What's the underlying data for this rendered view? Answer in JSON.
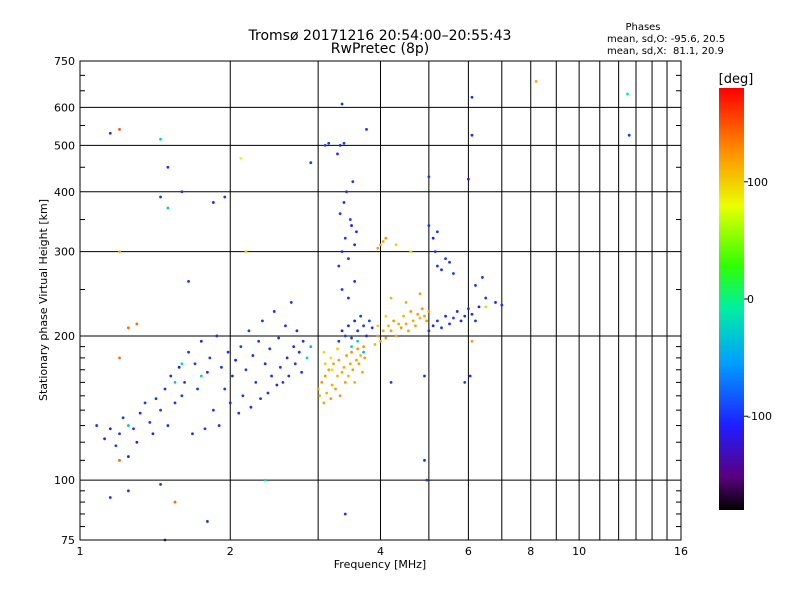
{
  "chart_data": {
    "type": "scatter",
    "title": "Tromsø 20171216 20:54:00–20:55:43",
    "subtitle": "RwPretec (8p)",
    "xlabel": "Frequency [MHz]",
    "ylabel": "Stationary phase Virtual Height [km]",
    "x_scale": "log2",
    "y_scale": "log",
    "xlim": [
      1,
      16
    ],
    "ylim": [
      75,
      750
    ],
    "x_ticks": [
      1,
      2,
      4,
      6,
      8,
      10,
      16
    ],
    "y_ticks": [
      75,
      100,
      200,
      300,
      400,
      500,
      600,
      750
    ],
    "grid": true,
    "stats": {
      "heading": "Phases",
      "line_o": "mean, sd,O: -95.6, 20.5",
      "line_x": "mean, sd,X:  81.1, 20.9"
    },
    "colorbar": {
      "label": "[deg]",
      "range": [
        -180,
        180
      ],
      "ticks": [
        100,
        0,
        -100
      ],
      "colormap": "rainbow"
    },
    "points": [
      [
        1.08,
        130,
        -100
      ],
      [
        1.12,
        122,
        -105
      ],
      [
        1.15,
        128,
        -110
      ],
      [
        1.18,
        118,
        -95
      ],
      [
        1.2,
        125,
        -100
      ],
      [
        1.22,
        135,
        -98
      ],
      [
        1.25,
        112,
        -105
      ],
      [
        1.28,
        128,
        -100
      ],
      [
        1.3,
        120,
        -110
      ],
      [
        1.32,
        138,
        -102
      ],
      [
        1.35,
        145,
        -95
      ],
      [
        1.38,
        132,
        -100
      ],
      [
        1.4,
        125,
        -108
      ],
      [
        1.42,
        148,
        -98
      ],
      [
        1.45,
        140,
        -100
      ],
      [
        1.48,
        155,
        -102
      ],
      [
        1.5,
        130,
        -98
      ],
      [
        1.52,
        165,
        -105
      ],
      [
        1.55,
        145,
        -100
      ],
      [
        1.58,
        172,
        -110
      ],
      [
        1.6,
        150,
        -98
      ],
      [
        1.62,
        160,
        -102
      ],
      [
        1.65,
        185,
        -100
      ],
      [
        1.68,
        125,
        -104
      ],
      [
        1.7,
        175,
        -95
      ],
      [
        1.72,
        155,
        -100
      ],
      [
        1.75,
        195,
        -108
      ],
      [
        1.78,
        128,
        -100
      ],
      [
        1.8,
        168,
        -102
      ],
      [
        1.82,
        180,
        -98
      ],
      [
        1.85,
        140,
        -100
      ],
      [
        1.88,
        200,
        -105
      ],
      [
        1.9,
        130,
        -100
      ],
      [
        1.92,
        172,
        -102
      ],
      [
        1.95,
        155,
        -98
      ],
      [
        1.98,
        185,
        -100
      ],
      [
        2.0,
        145,
        -104
      ],
      [
        2.02,
        165,
        -100
      ],
      [
        2.05,
        178,
        -108
      ],
      [
        2.08,
        138,
        -100
      ],
      [
        2.1,
        190,
        -98
      ],
      [
        2.12,
        150,
        -102
      ],
      [
        2.15,
        170,
        -100
      ],
      [
        2.18,
        205,
        -95
      ],
      [
        2.2,
        142,
        -100
      ],
      [
        2.22,
        182,
        -104
      ],
      [
        2.25,
        160,
        -100
      ],
      [
        2.28,
        195,
        -102
      ],
      [
        2.3,
        148,
        -98
      ],
      [
        2.32,
        215,
        -100
      ],
      [
        2.35,
        175,
        -106
      ],
      [
        2.38,
        152,
        -100
      ],
      [
        2.4,
        188,
        -98
      ],
      [
        2.42,
        165,
        -102
      ],
      [
        2.45,
        225,
        -100
      ],
      [
        2.48,
        158,
        -104
      ],
      [
        2.5,
        198,
        -100
      ],
      [
        2.52,
        172,
        -98
      ],
      [
        2.55,
        160,
        -102
      ],
      [
        2.58,
        210,
        -100
      ],
      [
        2.6,
        180,
        -105
      ],
      [
        2.62,
        165,
        -100
      ],
      [
        2.65,
        235,
        -98
      ],
      [
        2.68,
        190,
        -102
      ],
      [
        2.7,
        175,
        -100
      ],
      [
        2.72,
        205,
        -104
      ],
      [
        2.75,
        185,
        -100
      ],
      [
        2.78,
        168,
        -98
      ],
      [
        2.8,
        195,
        -102
      ],
      [
        2.85,
        180,
        -20
      ],
      [
        2.9,
        190,
        -40
      ],
      [
        1.25,
        130,
        -30
      ],
      [
        1.55,
        160,
        -30
      ],
      [
        1.6,
        175,
        -20
      ],
      [
        1.75,
        165,
        -20
      ],
      [
        3.0,
        155,
        120
      ],
      [
        3.02,
        150,
        115
      ],
      [
        3.05,
        160,
        125
      ],
      [
        3.08,
        145,
        118
      ],
      [
        3.1,
        165,
        122
      ],
      [
        3.12,
        152,
        110
      ],
      [
        3.15,
        170,
        120
      ],
      [
        3.18,
        148,
        125
      ],
      [
        3.2,
        158,
        115
      ],
      [
        3.22,
        175,
        118
      ],
      [
        3.25,
        155,
        122
      ],
      [
        3.28,
        165,
        110
      ],
      [
        3.3,
        178,
        120
      ],
      [
        3.32,
        150,
        125
      ],
      [
        3.35,
        168,
        118
      ],
      [
        3.38,
        172,
        115
      ],
      [
        3.4,
        160,
        122
      ],
      [
        3.42,
        182,
        120
      ],
      [
        3.45,
        165,
        110
      ],
      [
        3.48,
        175,
        118
      ],
      [
        3.5,
        185,
        125
      ],
      [
        3.52,
        170,
        120
      ],
      [
        3.55,
        160,
        115
      ],
      [
        3.58,
        178,
        118
      ],
      [
        3.6,
        188,
        122
      ],
      [
        3.62,
        175,
        120
      ],
      [
        3.65,
        182,
        110
      ],
      [
        3.68,
        168,
        118
      ],
      [
        3.7,
        190,
        125
      ],
      [
        3.72,
        180,
        120
      ],
      [
        3.08,
        185,
        95
      ],
      [
        3.18,
        180,
        90
      ],
      [
        3.28,
        188,
        98
      ],
      [
        3.1,
        175,
        100
      ],
      [
        3.2,
        170,
        92
      ],
      [
        3.9,
        192,
        110
      ],
      [
        3.95,
        200,
        120
      ],
      [
        4.0,
        195,
        115
      ],
      [
        4.05,
        205,
        118
      ],
      [
        4.1,
        198,
        122
      ],
      [
        4.15,
        210,
        110
      ],
      [
        4.2,
        205,
        120
      ],
      [
        4.25,
        215,
        125
      ],
      [
        4.3,
        200,
        118
      ],
      [
        4.35,
        212,
        115
      ],
      [
        4.4,
        208,
        122
      ],
      [
        4.45,
        220,
        110
      ],
      [
        4.5,
        212,
        118
      ],
      [
        4.55,
        205,
        120
      ],
      [
        4.6,
        225,
        125
      ],
      [
        4.65,
        215,
        115
      ],
      [
        4.7,
        210,
        118
      ],
      [
        4.75,
        222,
        120
      ],
      [
        4.8,
        218,
        110
      ],
      [
        4.85,
        228,
        122
      ],
      [
        4.9,
        220,
        118
      ],
      [
        4.95,
        215,
        120
      ],
      [
        5.0,
        225,
        125
      ],
      [
        3.95,
        210,
        100
      ],
      [
        4.1,
        220,
        95
      ],
      [
        3.3,
        195,
        -100
      ],
      [
        3.35,
        205,
        -110
      ],
      [
        3.4,
        200,
        -95
      ],
      [
        3.45,
        210,
        -105
      ],
      [
        3.5,
        198,
        -100
      ],
      [
        3.55,
        215,
        -108
      ],
      [
        3.6,
        205,
        -102
      ],
      [
        3.65,
        220,
        -98
      ],
      [
        3.7,
        210,
        -100
      ],
      [
        3.75,
        200,
        -105
      ],
      [
        3.8,
        215,
        -95
      ],
      [
        3.85,
        208,
        -100
      ],
      [
        3.3,
        280,
        -100
      ],
      [
        3.35,
        300,
        -105
      ],
      [
        3.4,
        320,
        -95
      ],
      [
        3.45,
        290,
        -100
      ],
      [
        3.5,
        340,
        -108
      ],
      [
        3.55,
        310,
        -102
      ],
      [
        3.32,
        360,
        -98
      ],
      [
        3.38,
        380,
        -100
      ],
      [
        3.42,
        400,
        -105
      ],
      [
        3.48,
        350,
        -95
      ],
      [
        3.52,
        420,
        -100
      ],
      [
        3.58,
        330,
        -102
      ],
      [
        3.35,
        250,
        -100
      ],
      [
        3.45,
        240,
        -98
      ],
      [
        3.55,
        260,
        -105
      ],
      [
        3.28,
        480,
        -100
      ],
      [
        3.32,
        500,
        -108
      ],
      [
        3.38,
        505,
        -95
      ],
      [
        3.6,
        195,
        -30
      ],
      [
        3.5,
        190,
        -20
      ],
      [
        3.7,
        185,
        -40
      ],
      [
        5.0,
        205,
        -100
      ],
      [
        5.1,
        210,
        -105
      ],
      [
        5.2,
        215,
        -98
      ],
      [
        5.3,
        208,
        -100
      ],
      [
        5.4,
        220,
        -108
      ],
      [
        5.5,
        212,
        -102
      ],
      [
        5.6,
        218,
        -95
      ],
      [
        5.7,
        225,
        -100
      ],
      [
        5.8,
        215,
        -105
      ],
      [
        5.9,
        220,
        -100
      ],
      [
        6.0,
        228,
        -98
      ],
      [
        6.1,
        222,
        -102
      ],
      [
        6.2,
        215,
        -100
      ],
      [
        6.3,
        230,
        -108
      ],
      [
        5.2,
        280,
        -100
      ],
      [
        5.3,
        275,
        -105
      ],
      [
        5.4,
        290,
        -95
      ],
      [
        5.5,
        285,
        -100
      ],
      [
        5.15,
        300,
        -102
      ],
      [
        5.6,
        270,
        -98
      ],
      [
        6.5,
        240,
        -100
      ],
      [
        6.8,
        235,
        -105
      ],
      [
        7.0,
        232,
        -100
      ],
      [
        6.2,
        255,
        -98
      ],
      [
        6.4,
        265,
        -102
      ],
      [
        5.0,
        340,
        -100
      ],
      [
        5.1,
        320,
        -105
      ],
      [
        5.2,
        330,
        -95
      ],
      [
        6.0,
        425,
        -110
      ],
      [
        4.0,
        310,
        120
      ],
      [
        4.05,
        315,
        115
      ],
      [
        4.1,
        320,
        125
      ],
      [
        3.95,
        305,
        118
      ],
      [
        4.3,
        310,
        100
      ],
      [
        4.6,
        300,
        95
      ],
      [
        4.2,
        240,
        110
      ],
      [
        4.5,
        235,
        115
      ],
      [
        4.8,
        245,
        120
      ],
      [
        6.5,
        230,
        60
      ],
      [
        1.15,
        530,
        -100
      ],
      [
        1.2,
        540,
        150
      ],
      [
        1.45,
        515,
        -20
      ],
      [
        1.5,
        450,
        -100
      ],
      [
        1.6,
        400,
        -100
      ],
      [
        1.45,
        390,
        -100
      ],
      [
        1.5,
        370,
        -30
      ],
      [
        1.65,
        260,
        -100
      ],
      [
        1.85,
        380,
        -100
      ],
      [
        1.95,
        390,
        -100
      ],
      [
        2.1,
        470,
        80
      ],
      [
        2.15,
        300,
        100
      ],
      [
        2.9,
        460,
        -100
      ],
      [
        3.35,
        610,
        -100
      ],
      [
        3.75,
        540,
        -100
      ],
      [
        3.1,
        500,
        -100
      ],
      [
        3.15,
        505,
        -100
      ],
      [
        6.1,
        630,
        -100
      ],
      [
        6.1,
        525,
        -100
      ],
      [
        8.2,
        680,
        115
      ],
      [
        12.5,
        640,
        -10
      ],
      [
        12.6,
        525,
        -100
      ],
      [
        5.0,
        430,
        -100
      ],
      [
        1.2,
        300,
        120
      ],
      [
        1.25,
        95,
        -100
      ],
      [
        1.15,
        92,
        -100
      ],
      [
        1.45,
        98,
        -100
      ],
      [
        1.55,
        90,
        140
      ],
      [
        1.8,
        82,
        -100
      ],
      [
        2.35,
        100,
        -20
      ],
      [
        3.4,
        85,
        -100
      ],
      [
        4.9,
        110,
        -100
      ],
      [
        4.95,
        100,
        -100
      ],
      [
        1.48,
        75,
        -100
      ],
      [
        1.2,
        110,
        140
      ],
      [
        1.25,
        208,
        140
      ],
      [
        1.3,
        212,
        140
      ],
      [
        1.2,
        180,
        140
      ],
      [
        6.1,
        195,
        120
      ],
      [
        5.9,
        160,
        -100
      ],
      [
        6.05,
        165,
        -100
      ],
      [
        4.2,
        160,
        -100
      ],
      [
        4.9,
        165,
        -100
      ]
    ]
  }
}
